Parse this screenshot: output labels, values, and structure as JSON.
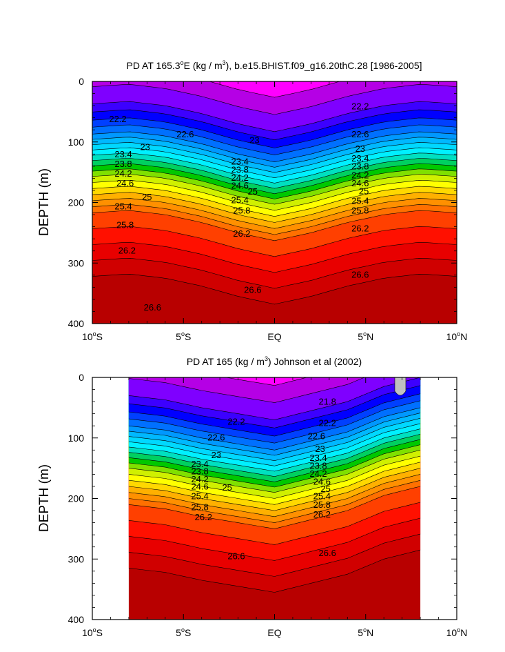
{
  "chart_data": [
    {
      "type": "contour",
      "title": "PD AT 165.3°E (kg / m³), b.e15.BHIST.f09_g16.20thC.28 [1986-2005]",
      "title_parts": {
        "pre": "PD AT 165.3",
        "sup1": "o",
        "mid": "E (kg / m",
        "sup2": "3",
        "post": "), b.e15.BHIST.f09_g16.20thC.28 [1986-2005]"
      },
      "ylabel": "DEPTH (m)",
      "xlim": [
        -10,
        10
      ],
      "ylim": [
        0,
        400
      ],
      "y_inverted": true,
      "x_ticks": [
        {
          "value": -10,
          "label": "10",
          "sup": "o",
          "hemi": "S"
        },
        {
          "value": -5,
          "label": "5",
          "sup": "o",
          "hemi": "S"
        },
        {
          "value": 0,
          "label": "EQ",
          "sup": "",
          "hemi": ""
        },
        {
          "value": 5,
          "label": "5",
          "sup": "o",
          "hemi": "N"
        },
        {
          "value": 10,
          "label": "10",
          "sup": "o",
          "hemi": "N"
        }
      ],
      "y_ticks": [
        0,
        100,
        200,
        300,
        400
      ],
      "data_xrange": [
        -10,
        10
      ],
      "levels": [
        21.8,
        22.0,
        22.2,
        22.4,
        22.6,
        22.8,
        23.0,
        23.2,
        23.4,
        23.6,
        23.8,
        24.0,
        24.2,
        24.4,
        24.6,
        24.8,
        25.0,
        25.2,
        25.4,
        25.6,
        25.8,
        26.0,
        26.2,
        26.4,
        26.6
      ],
      "fill_colors": [
        "#ff00ff",
        "#b500e5",
        "#7f00ff",
        "#3c00ff",
        "#0000ff",
        "#0040ff",
        "#0070ff",
        "#0098ff",
        "#00b8ff",
        "#00d8ff",
        "#00f0ff",
        "#00e0c0",
        "#00d060",
        "#00c800",
        "#80e000",
        "#d0f000",
        "#ffff00",
        "#ffd800",
        "#ffb000",
        "#ff9000",
        "#ff7000",
        "#ff4000",
        "#ff1000",
        "#e80000",
        "#d00000",
        "#b80000"
      ],
      "depth_profile": {
        "x": [
          -10,
          -8,
          -6,
          -4,
          -2,
          0,
          2,
          4,
          6,
          8,
          10
        ],
        "shift": [
          -8,
          -12,
          -5,
          8,
          25,
          38,
          25,
          8,
          -5,
          -12,
          -8
        ]
      },
      "labeled_contours": [
        {
          "value": "22.2",
          "x": -8.6,
          "depth": 62
        },
        {
          "value": "22.6",
          "x": -4.9,
          "depth": 87
        },
        {
          "value": "23",
          "x": -7.1,
          "depth": 108
        },
        {
          "value": "23.4",
          "x": -8.3,
          "depth": 120
        },
        {
          "value": "23.8",
          "x": -8.3,
          "depth": 136
        },
        {
          "value": "24.2",
          "x": -8.3,
          "depth": 152
        },
        {
          "value": "24.6",
          "x": -8.2,
          "depth": 168
        },
        {
          "value": "25",
          "x": -7.0,
          "depth": 191
        },
        {
          "value": "25.4",
          "x": -8.3,
          "depth": 206
        },
        {
          "value": "25.8",
          "x": -8.2,
          "depth": 237
        },
        {
          "value": "26.2",
          "x": -8.1,
          "depth": 279
        },
        {
          "value": "26.6",
          "x": -6.7,
          "depth": 373
        },
        {
          "value": "23",
          "x": -1.1,
          "depth": 97
        },
        {
          "value": "23.4",
          "x": -1.9,
          "depth": 132
        },
        {
          "value": "23.8",
          "x": -1.9,
          "depth": 146
        },
        {
          "value": "24.2",
          "x": -1.9,
          "depth": 159
        },
        {
          "value": "24.6",
          "x": -1.9,
          "depth": 172
        },
        {
          "value": "25",
          "x": -1.2,
          "depth": 182
        },
        {
          "value": "25.4",
          "x": -1.9,
          "depth": 196
        },
        {
          "value": "25.8",
          "x": -1.8,
          "depth": 213
        },
        {
          "value": "26.2",
          "x": -1.8,
          "depth": 251
        },
        {
          "value": "26.6",
          "x": -1.2,
          "depth": 344
        },
        {
          "value": "22.2",
          "x": 4.7,
          "depth": 41
        },
        {
          "value": "22.6",
          "x": 4.7,
          "depth": 87
        },
        {
          "value": "23",
          "x": 4.7,
          "depth": 111
        },
        {
          "value": "23.4",
          "x": 4.7,
          "depth": 127
        },
        {
          "value": "23.8",
          "x": 4.7,
          "depth": 140
        },
        {
          "value": "24.2",
          "x": 4.7,
          "depth": 155
        },
        {
          "value": "24.6",
          "x": 4.7,
          "depth": 168
        },
        {
          "value": "25",
          "x": 4.9,
          "depth": 181
        },
        {
          "value": "25.4",
          "x": 4.7,
          "depth": 197
        },
        {
          "value": "25.8",
          "x": 4.7,
          "depth": 213
        },
        {
          "value": "26.2",
          "x": 4.7,
          "depth": 243
        },
        {
          "value": "26.6",
          "x": 4.7,
          "depth": 319
        }
      ]
    },
    {
      "type": "contour",
      "title": "PD AT 165 (kg / m³) Johnson et al (2002)",
      "title_parts": {
        "pre": "PD AT 165 (kg / m",
        "sup1": "3",
        "mid": ") Johnson et al (2002)",
        "sup2": "",
        "post": ""
      },
      "ylabel": "DEPTH (m)",
      "xlim": [
        -10,
        10
      ],
      "ylim": [
        0,
        400
      ],
      "y_inverted": true,
      "x_ticks": [
        {
          "value": -10,
          "label": "10",
          "sup": "o",
          "hemi": "S"
        },
        {
          "value": -5,
          "label": "5",
          "sup": "o",
          "hemi": "S"
        },
        {
          "value": 0,
          "label": "EQ",
          "sup": "",
          "hemi": ""
        },
        {
          "value": 5,
          "label": "5",
          "sup": "o",
          "hemi": "N"
        },
        {
          "value": 10,
          "label": "10",
          "sup": "o",
          "hemi": "N"
        }
      ],
      "y_ticks": [
        0,
        100,
        200,
        300,
        400
      ],
      "data_xrange": [
        -8,
        8
      ],
      "levels": [
        21.8,
        22.0,
        22.2,
        22.4,
        22.6,
        22.8,
        23.0,
        23.2,
        23.4,
        23.6,
        23.8,
        24.0,
        24.2,
        24.4,
        24.6,
        24.8,
        25.0,
        25.2,
        25.4,
        25.6,
        25.8,
        26.0,
        26.2,
        26.4,
        26.6
      ],
      "fill_colors": [
        "#ff00ff",
        "#b500e5",
        "#7f00ff",
        "#3c00ff",
        "#0000ff",
        "#0040ff",
        "#0070ff",
        "#0098ff",
        "#00b8ff",
        "#00d8ff",
        "#00f0ff",
        "#00e0c0",
        "#00d060",
        "#00c800",
        "#80e000",
        "#d0f000",
        "#ffff00",
        "#ffd800",
        "#ffb000",
        "#ff9000",
        "#ff7000",
        "#ff4000",
        "#ff1000",
        "#e80000",
        "#d00000",
        "#b80000"
      ],
      "missing_color": "#c0c0c0",
      "depth_profile": {
        "x": [
          -8,
          -6,
          -4,
          -2,
          0,
          2,
          4,
          6,
          8
        ],
        "shift": [
          -15,
          -8,
          5,
          15,
          25,
          10,
          -5,
          -30,
          -45
        ]
      },
      "labeled_contours": [
        {
          "value": "21.8",
          "x": 2.9,
          "depth": 40
        },
        {
          "value": "22.2",
          "x": -2.1,
          "depth": 73
        },
        {
          "value": "22.2",
          "x": 2.9,
          "depth": 75
        },
        {
          "value": "22.6",
          "x": -3.2,
          "depth": 99
        },
        {
          "value": "22.6",
          "x": 2.3,
          "depth": 97
        },
        {
          "value": "23",
          "x": -3.2,
          "depth": 128
        },
        {
          "value": "23",
          "x": 2.5,
          "depth": 118
        },
        {
          "value": "23.4",
          "x": -4.1,
          "depth": 143
        },
        {
          "value": "23.4",
          "x": 2.4,
          "depth": 133
        },
        {
          "value": "23.8",
          "x": -4.1,
          "depth": 155
        },
        {
          "value": "23.8",
          "x": 2.4,
          "depth": 146
        },
        {
          "value": "24.2",
          "x": -4.1,
          "depth": 168
        },
        {
          "value": "24.2",
          "x": 2.4,
          "depth": 159
        },
        {
          "value": "24.6",
          "x": -4.1,
          "depth": 180
        },
        {
          "value": "24.6",
          "x": 2.6,
          "depth": 172
        },
        {
          "value": "25",
          "x": -2.6,
          "depth": 182
        },
        {
          "value": "25",
          "x": 2.8,
          "depth": 184
        },
        {
          "value": "25.4",
          "x": -4.1,
          "depth": 196
        },
        {
          "value": "25.4",
          "x": 2.6,
          "depth": 196
        },
        {
          "value": "25.8",
          "x": -4.1,
          "depth": 214
        },
        {
          "value": "25.8",
          "x": 2.6,
          "depth": 210
        },
        {
          "value": "26.2",
          "x": -3.9,
          "depth": 231
        },
        {
          "value": "26.2",
          "x": 2.6,
          "depth": 226
        },
        {
          "value": "26.6",
          "x": -2.1,
          "depth": 295
        },
        {
          "value": "26.6",
          "x": 2.9,
          "depth": 290
        }
      ]
    }
  ]
}
